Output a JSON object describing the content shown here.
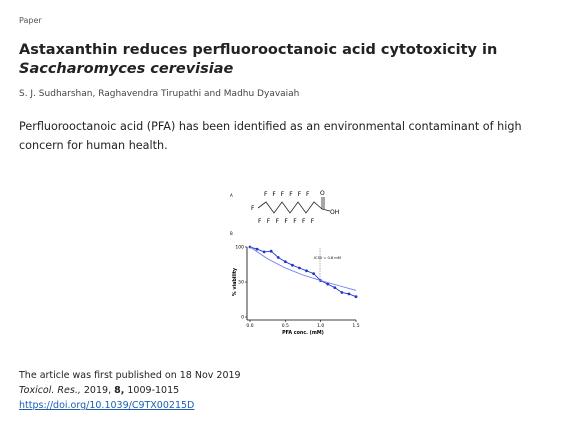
{
  "header": {
    "kind": "Paper",
    "title": "Astaxanthin reduces perfluorooctanoic acid cytotoxicity in ",
    "title_italic": "Saccharomyces cerevisiae",
    "authors": "S. J. Sudharshan, Raghavendra Tirupathi and Madhu Dyavaiah"
  },
  "abstract": "Perfluorooctanoic acid (PFA) has been identified as an environmental contaminant of high concern for human health.",
  "figure": {
    "panel_a": "A",
    "panel_b": "B",
    "structure": {
      "top_labels": [
        "F",
        "F",
        "F",
        "F",
        "F",
        "F"
      ],
      "carbonyl": "O",
      "left": "F",
      "hydroxyl": "OH",
      "bottom_labels": [
        "F",
        "F",
        "F",
        "F",
        "F",
        "F",
        "F"
      ]
    },
    "chart_data": {
      "type": "line",
      "xlabel": "PFA conc. (mM)",
      "ylabel": "% viability",
      "annotation": "IC50 = 0.8 mM",
      "xlim": [
        0,
        1.5
      ],
      "ylim": [
        0,
        100
      ],
      "xticks": [
        {
          "value": 0,
          "label": "0.0"
        },
        {
          "value": 0.5,
          "label": "0.5"
        },
        {
          "value": 1,
          "label": "1.0"
        },
        {
          "value": 1.5,
          "label": "1.5"
        }
      ],
      "yticks": [
        0,
        50,
        100
      ],
      "series": [
        {
          "color": "#2436c9",
          "x": [
            0,
            0.1,
            0.2,
            0.3,
            0.4,
            0.5,
            0.6,
            0.7,
            0.8,
            0.9,
            1.0,
            1.1,
            1.2,
            1.3,
            1.4,
            1.5
          ],
          "values": [
            100,
            97,
            93,
            94,
            85,
            79,
            74,
            70,
            66,
            62,
            52,
            47,
            42,
            35,
            33,
            29
          ],
          "markers": true
        },
        {
          "color": "#6b7bf0",
          "x": [
            0,
            0.25,
            0.5,
            0.75,
            1.0,
            1.25,
            1.5
          ],
          "values": [
            100,
            83,
            70,
            60,
            52,
            45,
            38
          ],
          "markers": false
        }
      ]
    }
  },
  "footer": {
    "published": "The article was first published on 18 Nov 2019",
    "journal": "Toxicol. Res.,",
    "year": "2019,",
    "volume": "8,",
    "pages": "1009-1015",
    "doi": "https://doi.org/10.1039/C9TX00215D"
  }
}
